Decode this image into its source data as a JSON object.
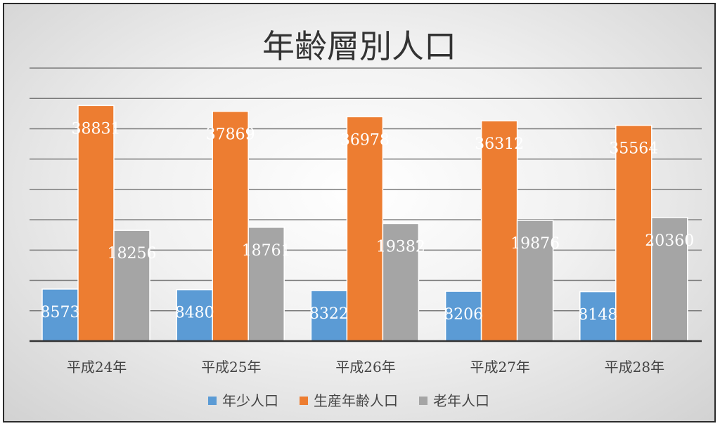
{
  "chart_data": {
    "type": "bar",
    "title": "年齢層別人口",
    "categories": [
      "平成24年",
      "平成25年",
      "平成26年",
      "平成27年",
      "平成28年"
    ],
    "series": [
      {
        "name": "年少人口",
        "color": "#5b9bd5",
        "values": [
          8573,
          8480,
          8322,
          8206,
          8148
        ]
      },
      {
        "name": "生産年齢人口",
        "color": "#ed7d31",
        "values": [
          38831,
          37869,
          36978,
          36312,
          35564
        ]
      },
      {
        "name": "老年人口",
        "color": "#a5a5a5",
        "values": [
          18256,
          18761,
          19382,
          19876,
          20360
        ]
      }
    ],
    "ylim": [
      0,
      45000
    ],
    "grid": true,
    "legend": "bottom",
    "data_label_color": "#ffffff"
  }
}
